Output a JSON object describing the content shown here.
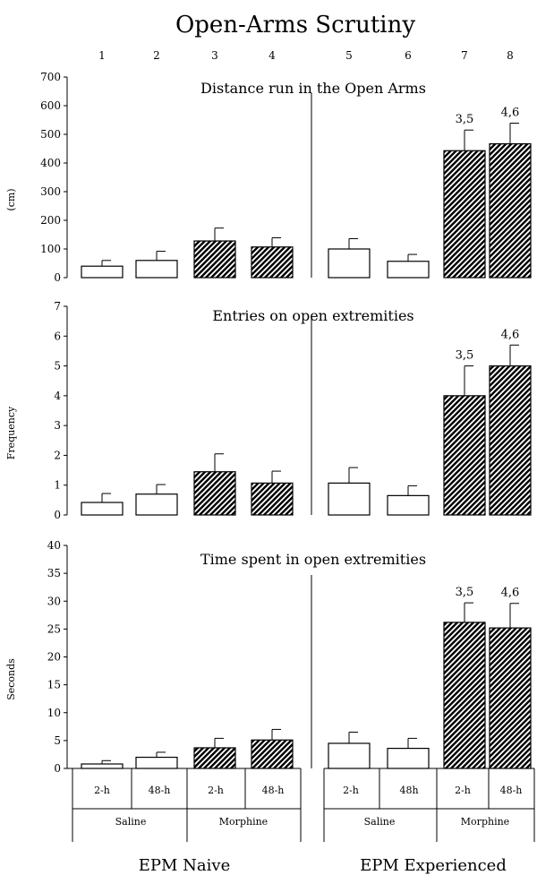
{
  "title": "Open-Arms Scrutiny",
  "column_numbers": [
    "1",
    "2",
    "3",
    "4",
    "5",
    "6",
    "7",
    "8"
  ],
  "time_labels": [
    "2-h",
    "48-h",
    "2-h",
    "48-h",
    "2-h",
    "48h",
    "2-h",
    "48-h"
  ],
  "treatment_labels": [
    "Saline",
    "Morphine",
    "Saline",
    "Morphine"
  ],
  "group_labels": [
    "EPM Naive",
    "EPM Experienced"
  ],
  "colors": {
    "bar_stroke": "#000000",
    "saline_fill": "#ffffff",
    "morphine_hatch": "#000000"
  },
  "chart_data": [
    {
      "type": "bar",
      "title": "Distance run in the Open Arms",
      "ylabel": "(cm)",
      "ylim": [
        0,
        700
      ],
      "yticks": [
        0,
        100,
        200,
        300,
        400,
        500,
        600,
        700
      ],
      "categories": [
        "1",
        "2",
        "3",
        "4",
        "5",
        "6",
        "7",
        "8"
      ],
      "values": [
        40,
        60,
        128,
        107,
        100,
        57,
        443,
        467
      ],
      "errors": [
        20,
        32,
        45,
        32,
        36,
        24,
        72,
        72
      ],
      "fill": [
        "open",
        "open",
        "hatched",
        "hatched",
        "open",
        "open",
        "hatched",
        "hatched"
      ],
      "annotations": [
        "",
        "",
        "",
        "",
        "",
        "",
        "3,5",
        "4,6"
      ]
    },
    {
      "type": "bar",
      "title": "Entries on open extremities",
      "ylabel": "Frequency",
      "ylim": [
        0,
        7
      ],
      "yticks": [
        0,
        1,
        2,
        3,
        4,
        5,
        6,
        7
      ],
      "categories": [
        "1",
        "2",
        "3",
        "4",
        "5",
        "6",
        "7",
        "8"
      ],
      "values": [
        0.42,
        0.7,
        1.45,
        1.07,
        1.07,
        0.65,
        4.0,
        5.0
      ],
      "errors": [
        0.3,
        0.32,
        0.6,
        0.4,
        0.52,
        0.33,
        1.0,
        0.7
      ],
      "fill": [
        "open",
        "open",
        "hatched",
        "hatched",
        "open",
        "open",
        "hatched",
        "hatched"
      ],
      "annotations": [
        "",
        "",
        "",
        "",
        "",
        "",
        "3,5",
        "4,6"
      ]
    },
    {
      "type": "bar",
      "title": "Time spent in open extremities",
      "ylabel": "Seconds",
      "ylim": [
        0,
        40
      ],
      "yticks": [
        0,
        5,
        10,
        15,
        20,
        25,
        30,
        35,
        40
      ],
      "categories": [
        "1",
        "2",
        "3",
        "4",
        "5",
        "6",
        "7",
        "8"
      ],
      "values": [
        0.8,
        2.0,
        3.7,
        5.1,
        4.5,
        3.6,
        26.2,
        25.2
      ],
      "errors": [
        0.6,
        0.9,
        1.7,
        1.9,
        2.0,
        1.8,
        3.5,
        4.4
      ],
      "fill": [
        "open",
        "open",
        "hatched",
        "hatched",
        "open",
        "open",
        "hatched",
        "hatched"
      ],
      "annotations": [
        "",
        "",
        "",
        "",
        "",
        "",
        "3,5",
        "4,6"
      ]
    }
  ]
}
